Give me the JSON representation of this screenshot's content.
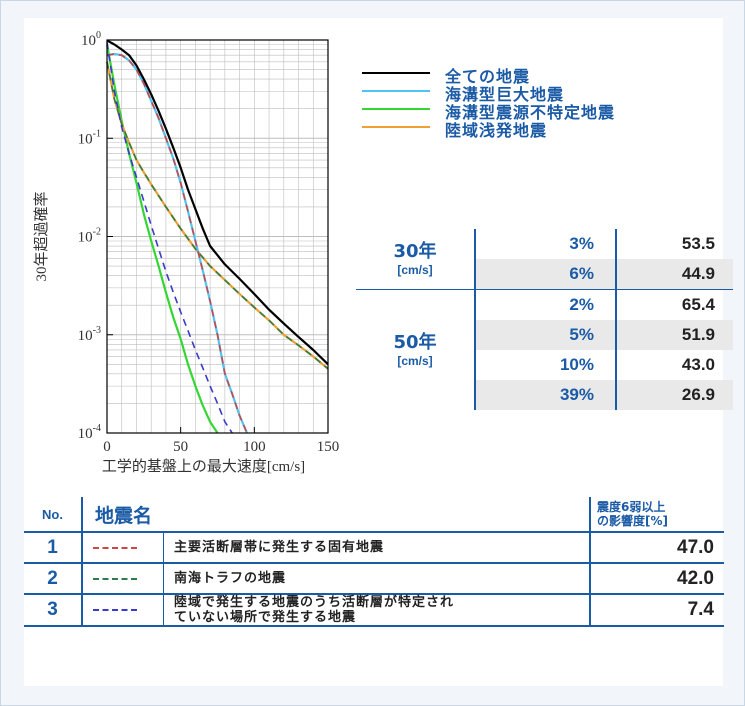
{
  "chart_data": {
    "type": "line",
    "ylabel": "30年超過確率",
    "xlabel": "工学的基盤上の最大速度[cm/s]",
    "x_ticks": [
      "0",
      "50",
      "100",
      "150"
    ],
    "y_ticks": [
      "10^0",
      "10^-1",
      "10^-2",
      "10^-3",
      "10^-4"
    ],
    "xlim": [
      0,
      150
    ],
    "ylim": [
      0.0001,
      1
    ],
    "yscale": "log",
    "grid": true,
    "series": [
      {
        "name": "全ての地震",
        "color": "#000000",
        "dash": "solid",
        "x": [
          0,
          5,
          10,
          15,
          20,
          25,
          30,
          35,
          40,
          45,
          50,
          55,
          60,
          65,
          70,
          80,
          90,
          100,
          110,
          120,
          130,
          140,
          150
        ],
        "y": [
          0.99,
          0.9,
          0.8,
          0.7,
          0.55,
          0.4,
          0.28,
          0.19,
          0.125,
          0.08,
          0.05,
          0.03,
          0.019,
          0.012,
          0.008,
          0.0052,
          0.0037,
          0.0026,
          0.0018,
          0.0013,
          0.00095,
          0.0007,
          0.0005
        ]
      },
      {
        "name": "海溝型巨大地震",
        "color": "#4fc3f7",
        "dash": "solid",
        "x": [
          0,
          5,
          10,
          15,
          20,
          25,
          30,
          35,
          40,
          45,
          50,
          55,
          60,
          65,
          70,
          75,
          80,
          85,
          90,
          95
        ],
        "y": [
          0.7,
          0.72,
          0.7,
          0.62,
          0.5,
          0.36,
          0.24,
          0.16,
          0.1,
          0.062,
          0.035,
          0.018,
          0.009,
          0.0045,
          0.0022,
          0.001,
          0.0004,
          0.00025,
          0.00015,
          0.0001
        ]
      },
      {
        "name": "海溝型震源不特定地震",
        "color": "#33d633",
        "dash": "solid",
        "x": [
          0,
          5,
          10,
          15,
          20,
          25,
          30,
          35,
          40,
          45,
          50,
          55,
          60,
          65,
          70,
          75
        ],
        "y": [
          0.9,
          0.35,
          0.15,
          0.07,
          0.035,
          0.017,
          0.009,
          0.005,
          0.0027,
          0.0015,
          0.0009,
          0.0005,
          0.0003,
          0.00019,
          0.00013,
          0.0001
        ]
      },
      {
        "name": "陸域浅発地震",
        "color": "#f0a030",
        "dash": "solid",
        "x": [
          0,
          5,
          10,
          15,
          20,
          25,
          30,
          40,
          50,
          60,
          70,
          80,
          90,
          100,
          110,
          120,
          130,
          140,
          150
        ],
        "y": [
          0.6,
          0.25,
          0.14,
          0.09,
          0.06,
          0.045,
          0.034,
          0.02,
          0.012,
          0.0075,
          0.005,
          0.0036,
          0.0026,
          0.0019,
          0.0014,
          0.001,
          0.00078,
          0.0006,
          0.00045
        ]
      },
      {
        "name": "主要活断層帯に発生する固有地震",
        "color": "#c84848",
        "dash": "dashed",
        "x": [
          0,
          5,
          10,
          15,
          20,
          25,
          30,
          35,
          40,
          45,
          50,
          55,
          60,
          65,
          70,
          75,
          80,
          85,
          90,
          95
        ],
        "y": [
          0.7,
          0.72,
          0.7,
          0.62,
          0.5,
          0.36,
          0.24,
          0.16,
          0.1,
          0.062,
          0.035,
          0.018,
          0.009,
          0.0045,
          0.0022,
          0.001,
          0.0004,
          0.00025,
          0.00015,
          0.0001
        ]
      },
      {
        "name": "南海トラフの地震",
        "color": "#2e7d4f",
        "dash": "dashed",
        "x": [
          0,
          5,
          10,
          15,
          20,
          25,
          30,
          40,
          50,
          60,
          70,
          80,
          90,
          100,
          110,
          120,
          130,
          140,
          150
        ],
        "y": [
          0.6,
          0.25,
          0.14,
          0.09,
          0.06,
          0.045,
          0.034,
          0.02,
          0.012,
          0.0075,
          0.005,
          0.0036,
          0.0026,
          0.0019,
          0.0014,
          0.001,
          0.00078,
          0.0006,
          0.00045
        ]
      },
      {
        "name": "陸域で発生する地震のうち活断層が特定されていない場所で発生する地震",
        "color": "#3a3acc",
        "dash": "dashed",
        "x": [
          0,
          5,
          10,
          15,
          20,
          25,
          30,
          35,
          40,
          45,
          50,
          55,
          60,
          65,
          70,
          75,
          80,
          85
        ],
        "y": [
          0.95,
          0.3,
          0.13,
          0.07,
          0.04,
          0.023,
          0.013,
          0.0075,
          0.0044,
          0.0027,
          0.0017,
          0.0011,
          0.0007,
          0.00046,
          0.0003,
          0.0002,
          0.00013,
          0.0001
        ]
      }
    ]
  },
  "legend": [
    {
      "label": "全ての地震",
      "color": "#000000"
    },
    {
      "label": "海溝型巨大地震",
      "color": "#4fc3f7"
    },
    {
      "label": "海溝型震源不特定地震",
      "color": "#33d633"
    },
    {
      "label": "陸域浅発地震",
      "color": "#f0a030"
    }
  ],
  "velocity_table": [
    {
      "period": "30年",
      "unit": "[cm/s]",
      "rows": [
        {
          "pct": "3%",
          "val": "53.5",
          "shade": false
        },
        {
          "pct": "6%",
          "val": "44.9",
          "shade": true
        }
      ]
    },
    {
      "period": "50年",
      "unit": "[cm/s]",
      "rows": [
        {
          "pct": "2%",
          "val": "65.4",
          "shade": false
        },
        {
          "pct": "5%",
          "val": "51.9",
          "shade": true
        },
        {
          "pct": "10%",
          "val": "43.0",
          "shade": false
        },
        {
          "pct": "39%",
          "val": "26.9",
          "shade": true
        }
      ]
    }
  ],
  "eq_table": {
    "header": {
      "no": "No.",
      "name": "地震名",
      "impact_line1": "震度6弱以上",
      "impact_line2": "の影響度[%]"
    },
    "rows": [
      {
        "no": "1",
        "line_color": "#c84848",
        "name": "主要活断層帯に発生する固有地震",
        "value": "47.0"
      },
      {
        "no": "2",
        "line_color": "#2e7d4f",
        "name": "南海トラフの地震",
        "value": "42.0"
      },
      {
        "no": "3",
        "line_color": "#3a3acc",
        "name_line1": "陸域で発生する地震のうち活断層が特定され",
        "name_line2": "ていない場所で発生する地震",
        "value": "7.4"
      }
    ]
  }
}
